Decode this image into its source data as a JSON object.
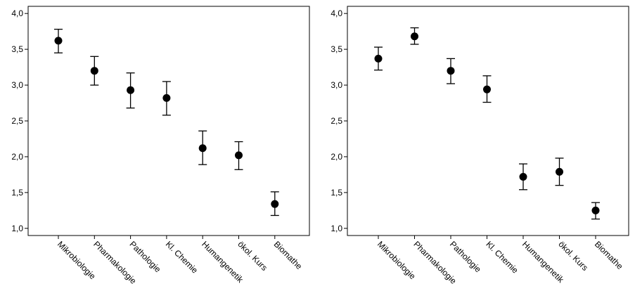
{
  "chart_data": [
    {
      "type": "scatter",
      "style": "mean-with-error-bars",
      "categories": [
        "Mikrobiologie",
        "Pharmakologie",
        "Pathologie",
        "Kl. Chemie",
        "Humangenetik",
        "ökol. Kurs",
        "Biomathe"
      ],
      "values": [
        3.62,
        3.2,
        2.93,
        2.82,
        2.12,
        2.02,
        1.34
      ],
      "error_low": [
        3.45,
        3.0,
        2.68,
        2.58,
        1.89,
        1.82,
        1.18
      ],
      "error_high": [
        3.78,
        3.4,
        3.17,
        3.05,
        2.36,
        2.21,
        1.51
      ],
      "ylim": [
        0.9,
        4.1
      ],
      "yticks": [
        1.0,
        1.5,
        2.0,
        2.5,
        3.0,
        3.5,
        4.0
      ],
      "ytick_labels": [
        "1,0",
        "1,5",
        "2,0",
        "2,5",
        "3,0",
        "3,5",
        "4,0"
      ],
      "title": "",
      "xlabel": "",
      "ylabel": "",
      "grid": false
    },
    {
      "type": "scatter",
      "style": "mean-with-error-bars",
      "categories": [
        "Mikrobiologie",
        "Pharmakologie",
        "Pathologie",
        "Kl. Chemie",
        "Humangenetik",
        "ökol. Kurs",
        "Biomathe"
      ],
      "values": [
        3.37,
        3.68,
        3.2,
        2.94,
        1.72,
        1.79,
        1.25
      ],
      "error_low": [
        3.21,
        3.57,
        3.02,
        2.76,
        1.54,
        1.6,
        1.13
      ],
      "error_high": [
        3.53,
        3.8,
        3.37,
        3.13,
        1.9,
        1.98,
        1.36
      ],
      "ylim": [
        0.9,
        4.1
      ],
      "yticks": [
        1.0,
        1.5,
        2.0,
        2.5,
        3.0,
        3.5,
        4.0
      ],
      "ytick_labels": [
        "1,0",
        "1,5",
        "2,0",
        "2,5",
        "3,0",
        "3,5",
        "4,0"
      ],
      "title": "",
      "xlabel": "",
      "ylabel": "",
      "grid": false
    }
  ]
}
